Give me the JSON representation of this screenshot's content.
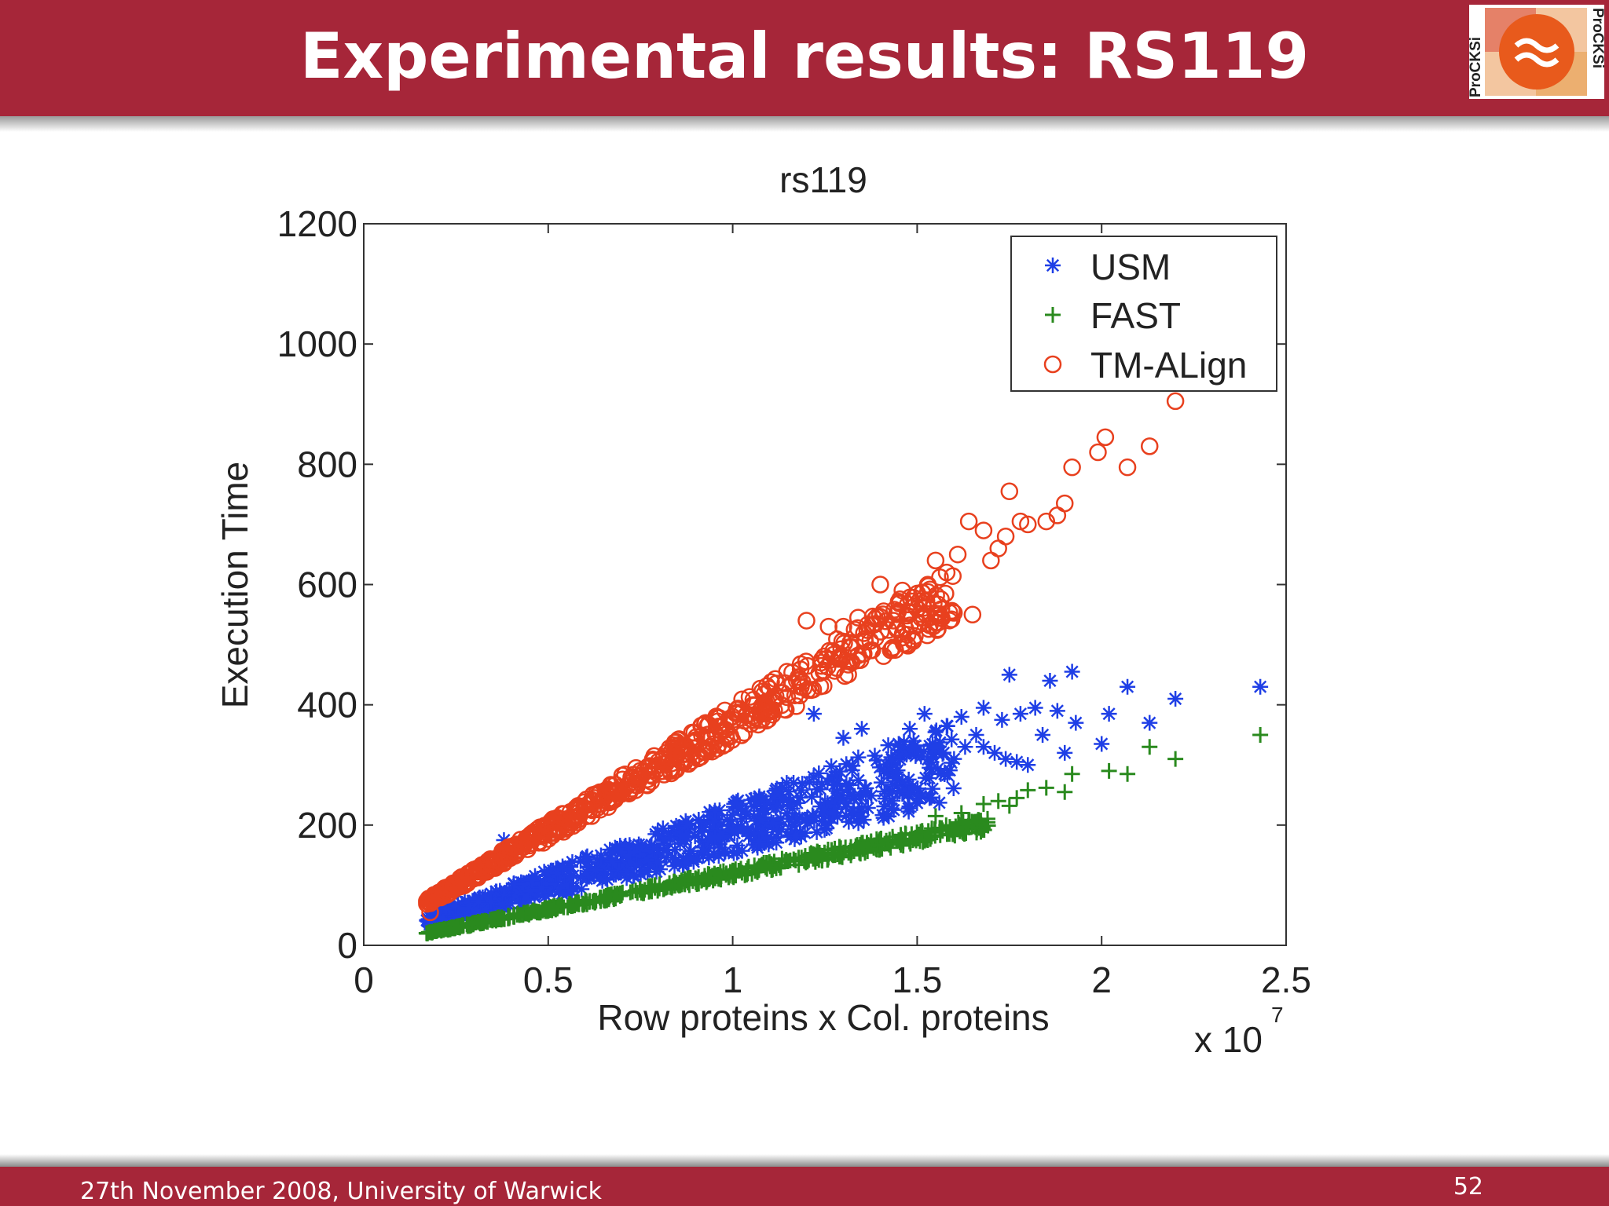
{
  "slide": {
    "title": "Experimental results: RS119",
    "footer": "27th November 2008, University of Warwick",
    "page_number": "52",
    "logo_text": "ProCKSi"
  },
  "colors": {
    "header": "#a62639",
    "usm": "#1f3fe6",
    "fast": "#2a8a1e",
    "tmalign": "#e8401e"
  },
  "chart_data": {
    "type": "scatter",
    "title": "rs119",
    "xlabel": "Row proteins x Col. proteins",
    "ylabel": "Execution Time",
    "x_multiplier_label": "x 10",
    "x_multiplier_exp": "7",
    "xlim": [
      0,
      2.5
    ],
    "ylim": [
      0,
      1200
    ],
    "xticks": [
      "0",
      "0.5",
      "1",
      "1.5",
      "2",
      "2.5"
    ],
    "yticks": [
      "0",
      "200",
      "400",
      "600",
      "800",
      "1000",
      "1200"
    ],
    "legend_position": "top-right",
    "series": [
      {
        "name": "USM",
        "marker": "asterisk",
        "color": "#1f3fe6",
        "trend": {
          "slope": 185,
          "intercept": 10,
          "spread": 0.22,
          "x_min": 0.17,
          "x_max": 1.6,
          "count": 700
        },
        "points": [
          [
            1.75,
            450
          ],
          [
            1.86,
            440
          ],
          [
            1.92,
            455
          ],
          [
            2.07,
            430
          ],
          [
            2.2,
            410
          ],
          [
            2.43,
            430
          ],
          [
            2.02,
            385
          ],
          [
            1.93,
            370
          ],
          [
            2.13,
            370
          ],
          [
            2.0,
            335
          ],
          [
            1.88,
            390
          ],
          [
            1.82,
            395
          ],
          [
            1.78,
            385
          ],
          [
            1.73,
            375
          ],
          [
            1.68,
            395
          ],
          [
            1.66,
            350
          ],
          [
            1.71,
            320
          ],
          [
            1.77,
            305
          ],
          [
            1.84,
            350
          ],
          [
            1.9,
            320
          ],
          [
            1.62,
            380
          ],
          [
            1.58,
            365
          ],
          [
            1.55,
            330
          ],
          [
            1.52,
            385
          ],
          [
            1.48,
            360
          ],
          [
            1.45,
            335
          ],
          [
            1.35,
            360
          ],
          [
            1.3,
            345
          ],
          [
            1.22,
            385
          ],
          [
            0.38,
            175
          ],
          [
            1.63,
            330
          ],
          [
            1.68,
            330
          ],
          [
            1.74,
            310
          ],
          [
            1.8,
            300
          ],
          [
            1.6,
            310
          ]
        ]
      },
      {
        "name": "FAST",
        "marker": "plus",
        "color": "#2a8a1e",
        "trend": {
          "slope": 120,
          "intercept": 0,
          "spread": 0.06,
          "x_min": 0.17,
          "x_max": 1.7,
          "count": 600
        },
        "points": [
          [
            2.43,
            350
          ],
          [
            2.2,
            310
          ],
          [
            2.13,
            330
          ],
          [
            2.07,
            285
          ],
          [
            2.02,
            290
          ],
          [
            1.92,
            285
          ],
          [
            1.9,
            255
          ],
          [
            1.85,
            262
          ],
          [
            1.8,
            258
          ],
          [
            1.77,
            245
          ],
          [
            1.75,
            232
          ],
          [
            1.72,
            240
          ],
          [
            1.68,
            235
          ],
          [
            1.62,
            220
          ],
          [
            1.55,
            215
          ]
        ]
      },
      {
        "name": "TM-ALign",
        "marker": "circle",
        "color": "#e8401e",
        "trend": {
          "slope": 360,
          "intercept": 10,
          "spread": 0.08,
          "x_min": 0.17,
          "x_max": 1.6,
          "count": 650
        },
        "points": [
          [
            2.2,
            905
          ],
          [
            2.01,
            845
          ],
          [
            1.99,
            820
          ],
          [
            2.07,
            795
          ],
          [
            2.13,
            830
          ],
          [
            1.92,
            795
          ],
          [
            1.75,
            755
          ],
          [
            1.9,
            735
          ],
          [
            1.88,
            715
          ],
          [
            1.85,
            705
          ],
          [
            1.8,
            700
          ],
          [
            1.78,
            705
          ],
          [
            1.74,
            680
          ],
          [
            1.72,
            660
          ],
          [
            1.65,
            550
          ],
          [
            1.68,
            690
          ],
          [
            1.64,
            705
          ],
          [
            1.61,
            650
          ],
          [
            1.58,
            620
          ],
          [
            1.55,
            640
          ],
          [
            1.2,
            540
          ],
          [
            1.34,
            545
          ],
          [
            1.3,
            530
          ],
          [
            0.67,
            265
          ],
          [
            0.18,
            55
          ],
          [
            1.26,
            530
          ],
          [
            1.5,
            560
          ],
          [
            1.46,
            590
          ],
          [
            1.4,
            600
          ],
          [
            1.7,
            640
          ]
        ]
      }
    ]
  }
}
